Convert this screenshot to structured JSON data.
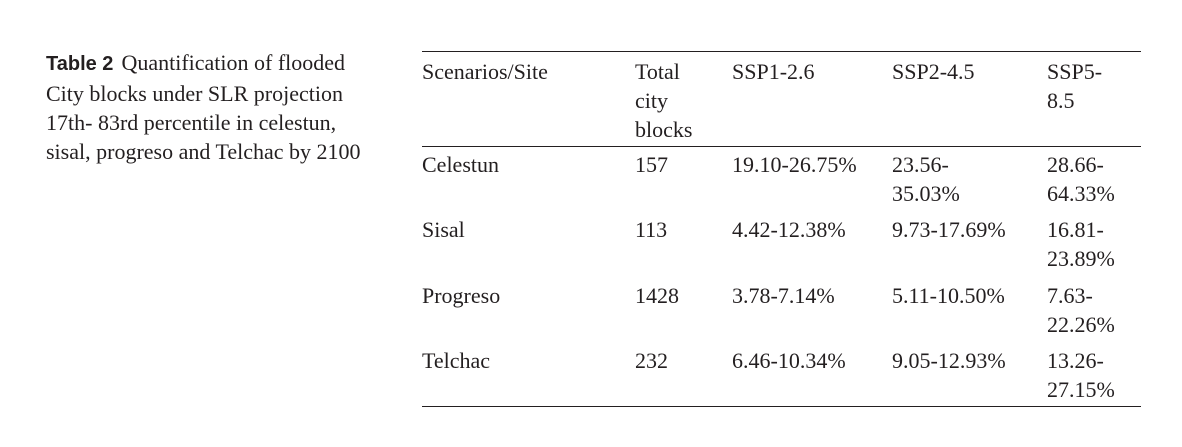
{
  "caption": {
    "label": "Table 2",
    "text": "Quantification of flooded City blocks under SLR projection 17th- 83rd percentile in celestun, sisal, progreso and Telchac by 2100"
  },
  "table": {
    "headers": [
      "Scenarios/Site",
      "Total city blocks",
      "SSP1-2.6",
      "SSP2-4.5",
      "SSP5-8.5"
    ],
    "rows": [
      [
        "Celestun",
        "157",
        "19.10-26.75%",
        "23.56-35.03%",
        "28.66-64.33%"
      ],
      [
        "Sisal",
        "113",
        "4.42-12.38%",
        "9.73-17.69%",
        "16.81-23.89%"
      ],
      [
        "Progreso",
        "1428",
        "3.78-7.14%",
        "5.11-10.50%",
        "7.63-22.26%"
      ],
      [
        "Telchac",
        "232",
        "6.46-10.34%",
        "9.05-12.93%",
        "13.26-27.15%"
      ]
    ]
  }
}
